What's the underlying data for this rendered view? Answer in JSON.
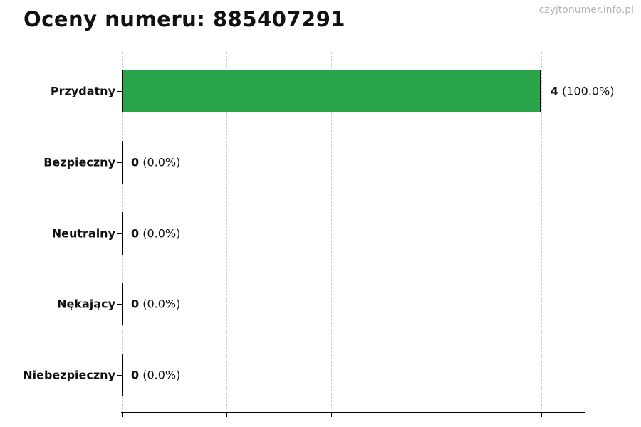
{
  "page": {
    "title": "Oceny numeru: 885407291",
    "watermark": "czyjtonumer.info.pl"
  },
  "chart_data": {
    "type": "bar",
    "orientation": "horizontal",
    "title": "Oceny numeru: 885407291",
    "categories": [
      "Przydatny",
      "Bezpieczny",
      "Neutralny",
      "Nękający",
      "Niebezpieczny"
    ],
    "values": [
      4,
      0,
      0,
      0,
      0
    ],
    "percentages": [
      100.0,
      0.0,
      0.0,
      0.0,
      0.0
    ],
    "value_labels": [
      {
        "count": "4",
        "pct": "(100.0%)"
      },
      {
        "count": "0",
        "pct": "(0.0%)"
      },
      {
        "count": "0",
        "pct": "(0.0%)"
      },
      {
        "count": "0",
        "pct": "(0.0%)"
      },
      {
        "count": "0",
        "pct": "(0.0%)"
      }
    ],
    "xlabel": "",
    "ylabel": "",
    "xlim": [
      0,
      4.42
    ],
    "x_ticks": [
      0,
      1,
      2,
      3,
      4
    ],
    "x_tick_labels_visible": false,
    "grid": {
      "vertical": true,
      "style": "dashed",
      "color": "#cccccc"
    },
    "legend": "none",
    "bar_color": "#2aa44a",
    "bar_edge_color": "#000000"
  }
}
